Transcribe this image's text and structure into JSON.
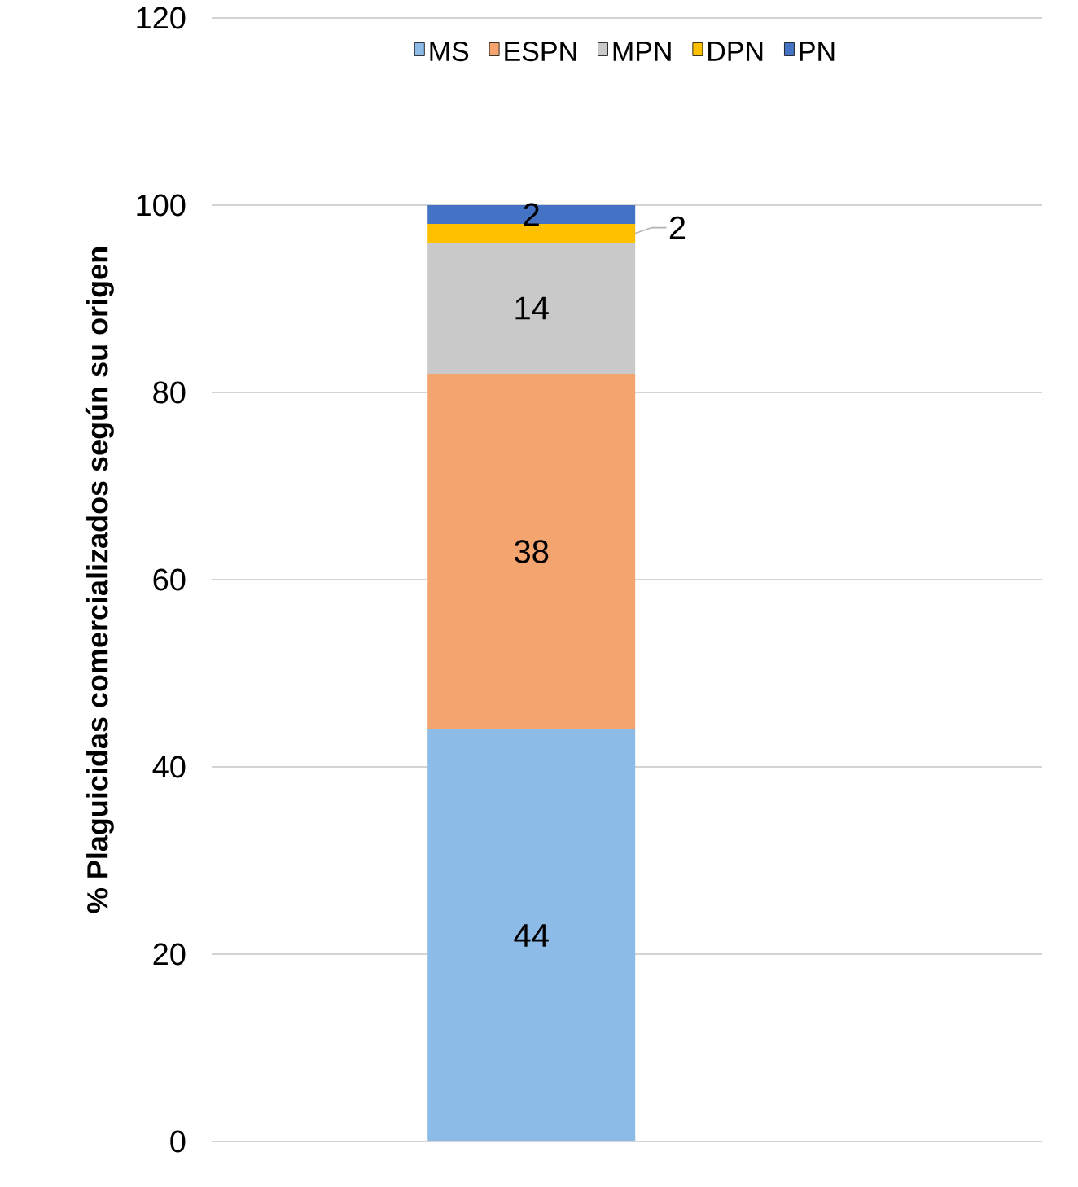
{
  "chart_data": {
    "type": "bar",
    "stacked": true,
    "categories": [
      null
    ],
    "ylabel": "% Plaguicidas comercializados según su origen",
    "ylim": [
      0,
      120
    ],
    "yticks": [
      0,
      20,
      40,
      60,
      80,
      100,
      120
    ],
    "grid": "y",
    "legend": "top",
    "data_labels": true,
    "series": [
      {
        "name": "MS",
        "color": "#8dbbe8",
        "values": [
          44
        ]
      },
      {
        "name": "ESPN",
        "color": "#f4a46e",
        "values": [
          38
        ]
      },
      {
        "name": "MPN",
        "color": "#c9c9c9",
        "values": [
          14
        ]
      },
      {
        "name": "DPN",
        "color": "#ffc000",
        "values": [
          2
        ]
      },
      {
        "name": "PN",
        "color": "#4472c4",
        "values": [
          2
        ]
      }
    ]
  }
}
